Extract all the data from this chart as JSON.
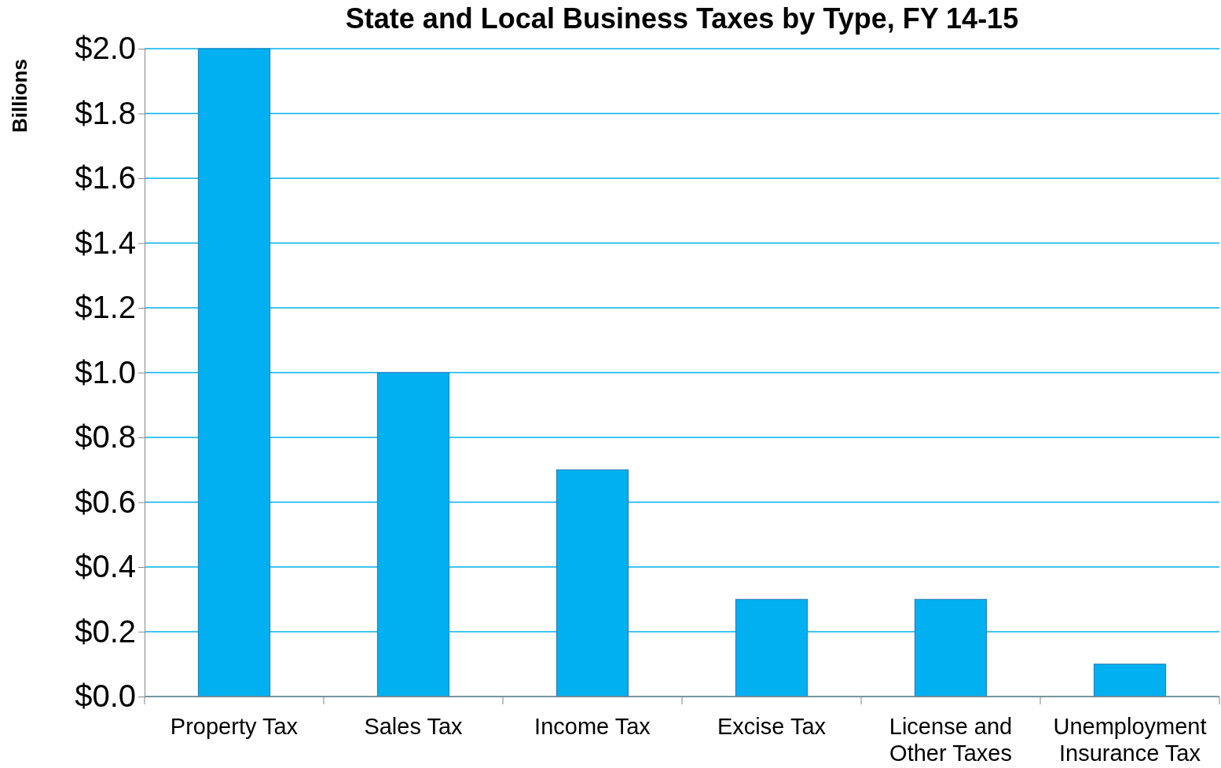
{
  "chart_data": {
    "type": "bar",
    "title": "State and Local Business Taxes by Type, FY 14-15",
    "ylabel": "Billions",
    "categories": [
      "Property Tax",
      "Sales Tax",
      "Income Tax",
      "Excise Tax",
      "License and Other Taxes",
      "Unemployment Insurance Tax"
    ],
    "values": [
      2.0,
      1.0,
      0.7,
      0.3,
      0.3,
      0.1
    ],
    "color": "#00b0f0",
    "ylim": [
      0,
      2.0
    ],
    "yticks": [
      {
        "value": 0,
        "label": "$0.0"
      },
      {
        "value": 0.2,
        "label": "$0.2"
      },
      {
        "value": 0.4,
        "label": "$0.4"
      },
      {
        "value": 0.6,
        "label": "$0.6"
      },
      {
        "value": 0.8,
        "label": "$0.8"
      },
      {
        "value": 1.0,
        "label": "$1.0"
      },
      {
        "value": 1.2,
        "label": "$1.2"
      },
      {
        "value": 1.4,
        "label": "$1.4"
      },
      {
        "value": 1.6,
        "label": "$1.6"
      },
      {
        "value": 1.8,
        "label": "$1.8"
      },
      {
        "value": 2.0,
        "label": "$2.0"
      }
    ],
    "grid": "y"
  }
}
